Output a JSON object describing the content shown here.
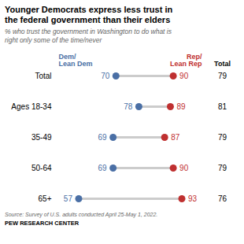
{
  "chart_data": {
    "type": "dumbbell",
    "title": "Younger Democrats express less trust in\nthe federal government than their elders",
    "subtitle": "% who trust the government in Washington to do what is\nright only some of the time/never",
    "categories": [
      "Total",
      "Ages 18-34",
      "35-49",
      "50-64",
      "65+"
    ],
    "orientation": "horizontal",
    "color": "#cccccc",
    "series": [
      {
        "name": "Dem/\nLean Dem",
        "color": "#4a6fa5",
        "values": [
          70,
          78,
          69,
          69,
          57
        ]
      },
      {
        "name": "Rep/\nLean Rep",
        "color": "#bf3030",
        "values": [
          90,
          89,
          87,
          90,
          93
        ]
      },
      {
        "name": "Total",
        "type": "text",
        "values": [
          79,
          81,
          79,
          79,
          76
        ]
      }
    ],
    "xlim": [
      50,
      100
    ],
    "tick_labels": "y",
    "data_labels": true,
    "grid": false,
    "source": "Source: Survey of U.S. adults conducted April 25-May 1, 2022.",
    "footer": "PEW RESEARCH CENTER"
  }
}
